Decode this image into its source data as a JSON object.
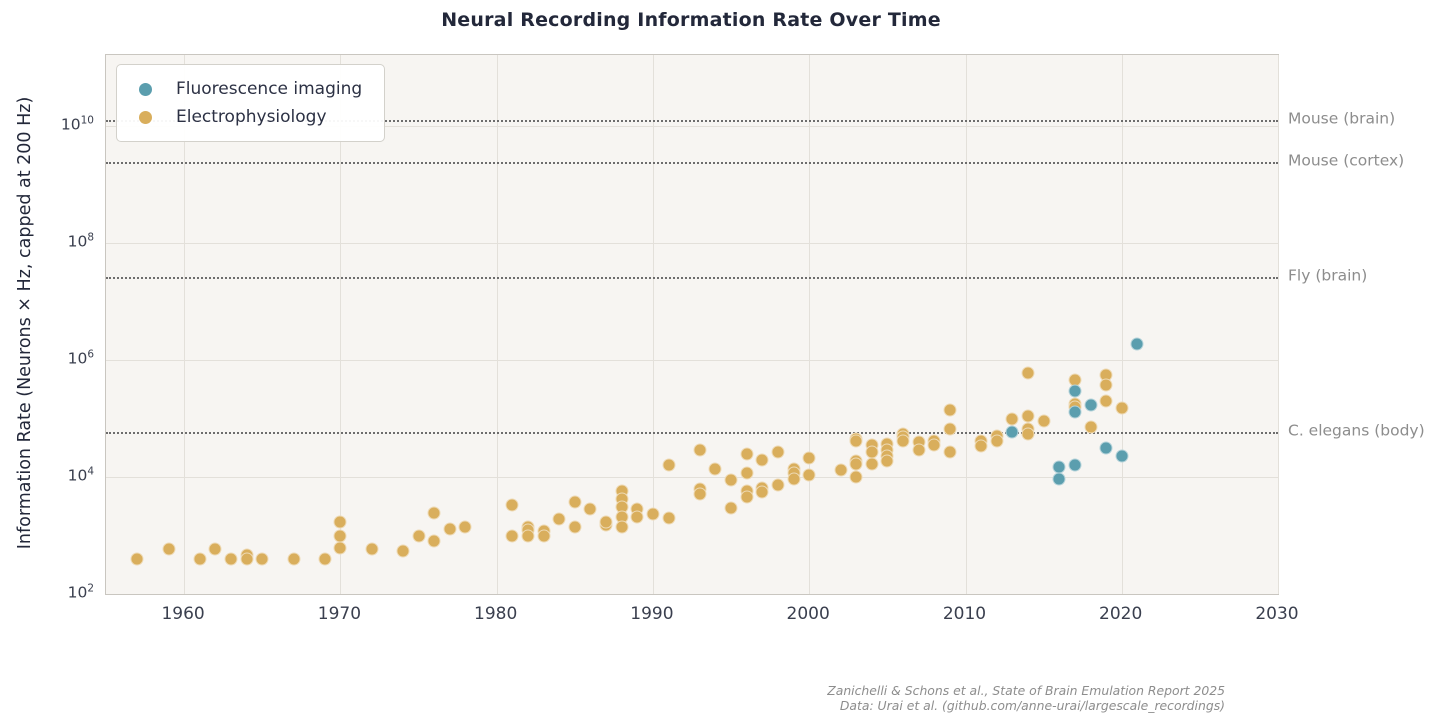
{
  "caption": {
    "line1": "Zanichelli & Schons et al., State of Brain Emulation Report 2025",
    "line2": "Data: Urai et al. (github.com/anne-urai/largescale_recordings)"
  },
  "colors": {
    "fluorescence": "#5b9eae",
    "electrophysiology": "#d9ae5c",
    "plot_background": "#f7f5f2",
    "grid": "#e3e0da",
    "reference_line": "#565656",
    "annotation_gray": "#8d8d8d"
  },
  "chart_data": {
    "type": "scatter",
    "title": "Neural Recording Information Rate Over Time",
    "xlabel": "",
    "ylabel": "Information Rate (Neurons × Hz, capped at 200 Hz)",
    "x_scale": "linear",
    "y_scale": "log",
    "xlim": [
      1955,
      2030
    ],
    "ylim_log10": [
      2,
      11.22
    ],
    "x_ticks": [
      1960,
      1970,
      1980,
      1990,
      2000,
      2010,
      2020,
      2030
    ],
    "y_tick_exponents": [
      2,
      4,
      6,
      8,
      10
    ],
    "grid": true,
    "legend_position": "upper-left",
    "reference_lines": [
      {
        "label": "Mouse (brain)",
        "value": 13000000000
      },
      {
        "label": "Mouse (cortex)",
        "value": 2500000000
      },
      {
        "label": "Fly (brain)",
        "value": 26000000
      },
      {
        "label": "C. elegans (body)",
        "value": 60000
      }
    ],
    "series": [
      {
        "name": "Fluorescence imaging",
        "color": "#5b9eae",
        "points": [
          [
            2013,
            60000
          ],
          [
            2016,
            15000
          ],
          [
            2016,
            9300
          ],
          [
            2017,
            300000
          ],
          [
            2017,
            130000
          ],
          [
            2017,
            16000
          ],
          [
            2018,
            170000
          ],
          [
            2019,
            32000
          ],
          [
            2020,
            23000
          ],
          [
            2021,
            1900000
          ]
        ]
      },
      {
        "name": "Electrophysiology",
        "color": "#d9ae5c",
        "points": [
          [
            1957,
            400
          ],
          [
            1959,
            600
          ],
          [
            1961,
            400
          ],
          [
            1962,
            600
          ],
          [
            1963,
            400
          ],
          [
            1964,
            470
          ],
          [
            1964,
            400
          ],
          [
            1965,
            400
          ],
          [
            1967,
            400
          ],
          [
            1969,
            400
          ],
          [
            1970,
            1700
          ],
          [
            1970,
            1000
          ],
          [
            1970,
            620
          ],
          [
            1972,
            600
          ],
          [
            1974,
            550
          ],
          [
            1975,
            1000
          ],
          [
            1976,
            2400
          ],
          [
            1976,
            800
          ],
          [
            1977,
            1300
          ],
          [
            1978,
            1400
          ],
          [
            1981,
            3400
          ],
          [
            1981,
            1000
          ],
          [
            1982,
            1400
          ],
          [
            1982,
            1250
          ],
          [
            1982,
            1000
          ],
          [
            1983,
            1200
          ],
          [
            1983,
            1000
          ],
          [
            1984,
            1900
          ],
          [
            1985,
            3700
          ],
          [
            1985,
            1400
          ],
          [
            1986,
            2900
          ],
          [
            1987,
            1500
          ],
          [
            1987,
            1700
          ],
          [
            1988,
            5900
          ],
          [
            1988,
            4300
          ],
          [
            1988,
            3100
          ],
          [
            1988,
            2100
          ],
          [
            1988,
            1400
          ],
          [
            1989,
            2900
          ],
          [
            1989,
            2100
          ],
          [
            1990,
            2300
          ],
          [
            1991,
            16000
          ],
          [
            1991,
            2000
          ],
          [
            1993,
            29000
          ],
          [
            1993,
            6300
          ],
          [
            1993,
            5200
          ],
          [
            1994,
            14000
          ],
          [
            1995,
            9000
          ],
          [
            1995,
            3000
          ],
          [
            1996,
            25000
          ],
          [
            1996,
            12000
          ],
          [
            1996,
            5700
          ],
          [
            1996,
            4500
          ],
          [
            1997,
            20000
          ],
          [
            1997,
            6400
          ],
          [
            1997,
            5500
          ],
          [
            1998,
            27000
          ],
          [
            1998,
            7200
          ],
          [
            1999,
            14000
          ],
          [
            1999,
            12000
          ],
          [
            1999,
            9300
          ],
          [
            2000,
            21000
          ],
          [
            2000,
            11000
          ],
          [
            2002,
            13000
          ],
          [
            2003,
            45000
          ],
          [
            2003,
            41000
          ],
          [
            2003,
            19000
          ],
          [
            2003,
            17000
          ],
          [
            2003,
            10000
          ],
          [
            2004,
            35000
          ],
          [
            2004,
            27000
          ],
          [
            2004,
            17000
          ],
          [
            2005,
            37000
          ],
          [
            2005,
            29000
          ],
          [
            2005,
            23000
          ],
          [
            2005,
            19000
          ],
          [
            2006,
            55000
          ],
          [
            2006,
            49000
          ],
          [
            2006,
            41000
          ],
          [
            2007,
            40000
          ],
          [
            2007,
            29000
          ],
          [
            2008,
            41000
          ],
          [
            2008,
            35000
          ],
          [
            2009,
            140000
          ],
          [
            2009,
            67000
          ],
          [
            2009,
            27000
          ],
          [
            2011,
            41000
          ],
          [
            2011,
            34000
          ],
          [
            2012,
            50000
          ],
          [
            2012,
            42000
          ],
          [
            2013,
            100000
          ],
          [
            2014,
            600000
          ],
          [
            2014,
            110000
          ],
          [
            2014,
            67000
          ],
          [
            2014,
            55000
          ],
          [
            2015,
            90000
          ],
          [
            2017,
            450000
          ],
          [
            2017,
            180000
          ],
          [
            2017,
            160000
          ],
          [
            2018,
            71000
          ],
          [
            2019,
            550000
          ],
          [
            2019,
            370000
          ],
          [
            2019,
            200000
          ],
          [
            2020,
            150000
          ]
        ]
      }
    ]
  }
}
